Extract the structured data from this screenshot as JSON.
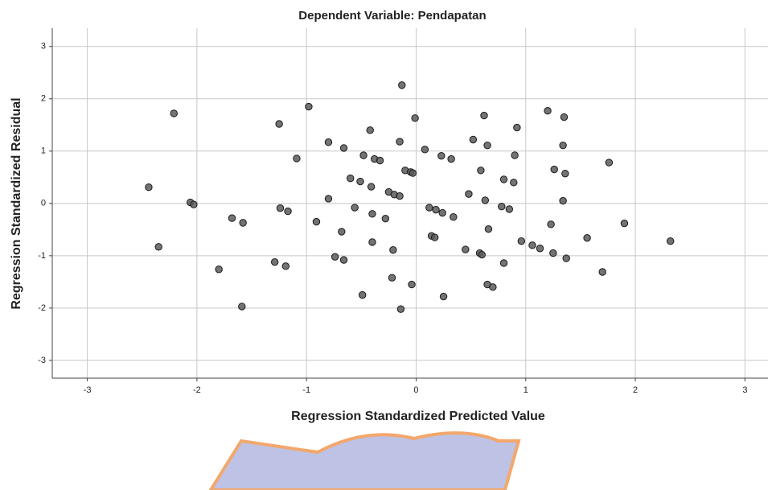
{
  "chart_data": {
    "type": "scatter",
    "title": "Dependent Variable: Pendapatan",
    "x_label": "Regression Standardized Predicted Value",
    "y_label": "Regression Standardized Residual",
    "x": [
      -2.44,
      -2.35,
      -2.21,
      -2.06,
      -2.03,
      -1.8,
      -1.68,
      -1.58,
      -1.59,
      -1.29,
      -1.25,
      -1.24,
      -1.19,
      -1.17,
      -1.09,
      -0.98,
      -0.91,
      -0.8,
      -0.8,
      -0.74,
      -0.68,
      -0.66,
      -0.66,
      -0.6,
      -0.56,
      -0.51,
      -0.49,
      -0.48,
      -0.42,
      -0.41,
      -0.4,
      -0.4,
      -0.38,
      -0.33,
      -0.28,
      -0.25,
      -0.22,
      -0.21,
      -0.2,
      -0.15,
      -0.15,
      -0.13,
      -0.14,
      -0.1,
      -0.05,
      -0.03,
      -0.04,
      -0.01,
      0.08,
      0.12,
      0.14,
      0.17,
      0.18,
      0.23,
      0.24,
      0.25,
      0.32,
      0.34,
      0.45,
      0.48,
      0.52,
      0.58,
      0.59,
      0.6,
      0.62,
      0.63,
      0.65,
      0.66,
      0.65,
      0.7,
      0.78,
      0.8,
      0.8,
      0.85,
      0.89,
      0.9,
      0.92,
      0.96,
      1.06,
      1.13,
      1.2,
      1.23,
      1.25,
      1.26,
      1.34,
      1.34,
      1.35,
      1.36,
      1.37,
      1.56,
      1.7,
      1.76,
      1.9,
      2.32
    ],
    "values": [
      0.31,
      -0.83,
      1.72,
      0.02,
      -0.02,
      -1.26,
      -0.28,
      -0.37,
      -1.97,
      -1.12,
      1.52,
      -0.09,
      -1.2,
      -0.15,
      0.86,
      1.85,
      -0.35,
      1.17,
      0.09,
      -1.02,
      -0.54,
      1.06,
      -1.08,
      0.48,
      -0.08,
      0.42,
      -1.75,
      0.92,
      1.4,
      0.32,
      -0.2,
      -0.74,
      0.85,
      0.82,
      -0.29,
      0.22,
      -1.42,
      -0.89,
      0.17,
      0.14,
      1.18,
      2.26,
      -2.02,
      0.63,
      0.6,
      0.58,
      -1.55,
      1.63,
      1.03,
      -0.08,
      -0.62,
      -0.65,
      -0.12,
      0.91,
      -0.18,
      -1.78,
      0.85,
      -0.26,
      -0.88,
      0.18,
      1.22,
      -0.95,
      0.63,
      -0.98,
      1.68,
      0.06,
      1.11,
      -0.49,
      -1.55,
      -1.6,
      -0.06,
      0.46,
      -1.14,
      -0.11,
      0.4,
      0.92,
      1.45,
      -0.72,
      -0.8,
      -0.86,
      1.77,
      -0.4,
      -0.95,
      0.65,
      0.05,
      1.11,
      1.65,
      0.57,
      -1.05,
      -0.66,
      -1.31,
      0.78,
      -0.38,
      -0.72
    ],
    "color": "#5a5a5a",
    "xlim": [
      -3.32,
      3.21
    ],
    "ylim": [
      -3.34,
      3.35
    ],
    "xticks": [
      -3,
      -2,
      -1,
      0,
      1,
      2,
      3
    ],
    "yticks": [
      -3,
      -2,
      -1,
      0,
      1,
      2,
      3
    ],
    "grid": true
  }
}
